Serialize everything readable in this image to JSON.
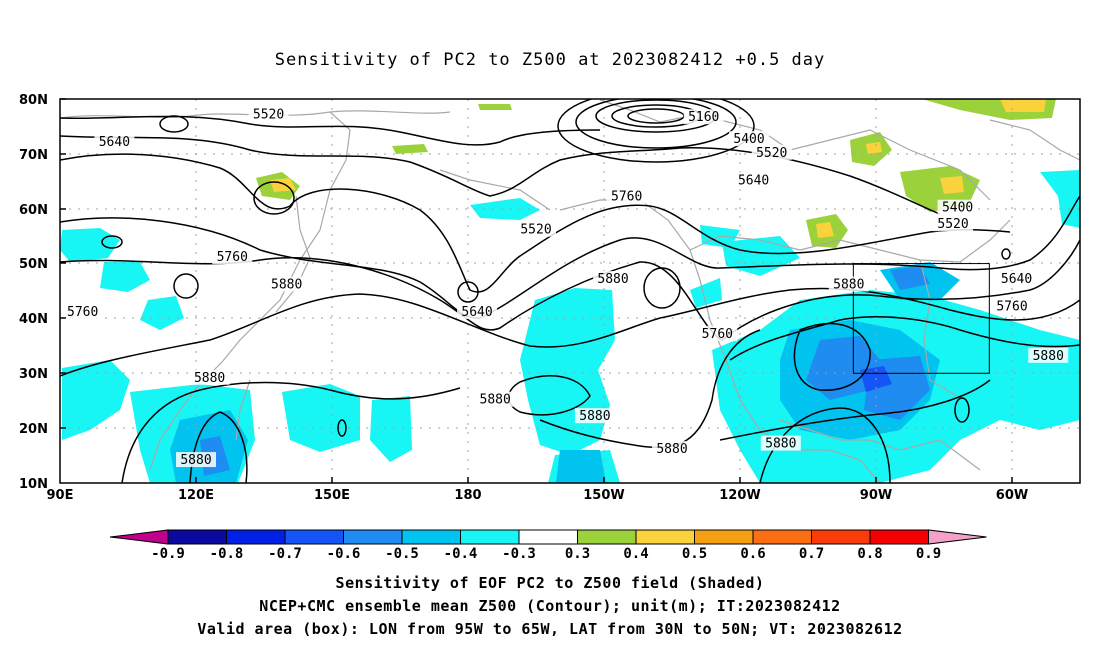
{
  "title": "Sensitivity of PC2 to Z500 at 2023082412 +0.5 day",
  "lat_labels": [
    "80N",
    "70N",
    "60N",
    "50N",
    "40N",
    "30N",
    "20N",
    "10N"
  ],
  "lon_labels": [
    "90E",
    "120E",
    "150E",
    "180",
    "150W",
    "120W",
    "90W",
    "60W"
  ],
  "colorbar": {
    "labels": [
      "-0.9",
      "-0.8",
      "-0.7",
      "-0.6",
      "-0.5",
      "-0.4",
      "-0.3",
      "0.3",
      "0.4",
      "0.5",
      "0.6",
      "0.7",
      "0.8",
      "0.9"
    ],
    "colors": [
      "#c0008c",
      "#0a0a9e",
      "#0020e6",
      "#1655f5",
      "#1e8cf0",
      "#00c3f0",
      "#18f5f5",
      "#ffffff",
      "#9bd23c",
      "#fad23c",
      "#f5a014",
      "#fa6e14",
      "#fa3c0a",
      "#f50000",
      "#f5a0c8"
    ]
  },
  "contour_labels": [
    "5160",
    "5400",
    "5520",
    "5640",
    "5760",
    "5880"
  ],
  "map_labels": [
    {
      "text": "5520",
      "lon": 136,
      "lat": 77
    },
    {
      "text": "5640",
      "lon": 102,
      "lat": 72
    },
    {
      "text": "5160",
      "lon": -128,
      "lat": 76.5
    },
    {
      "text": "5400",
      "lon": -118,
      "lat": 72.5
    },
    {
      "text": "5520",
      "lon": -113,
      "lat": 70
    },
    {
      "text": "5640",
      "lon": -117,
      "lat": 65
    },
    {
      "text": "5760",
      "lon": -145,
      "lat": 62
    },
    {
      "text": "5520",
      "lon": -165,
      "lat": 56
    },
    {
      "text": "5400",
      "lon": -72,
      "lat": 60
    },
    {
      "text": "5520",
      "lon": -73,
      "lat": 57
    },
    {
      "text": "5640",
      "lon": -59,
      "lat": 47
    },
    {
      "text": "5760",
      "lon": -60,
      "lat": 42
    },
    {
      "text": "5760",
      "lon": 128,
      "lat": 51
    },
    {
      "text": "5760",
      "lon": 95,
      "lat": 41
    },
    {
      "text": "5880",
      "lon": 140,
      "lat": 46
    },
    {
      "text": "5640",
      "lon": -178,
      "lat": 41
    },
    {
      "text": "5880",
      "lon": -148,
      "lat": 47
    },
    {
      "text": "5760",
      "lon": -125,
      "lat": 37
    },
    {
      "text": "5880",
      "lon": -96,
      "lat": 46
    },
    {
      "text": "5880",
      "lon": -52,
      "lat": 33
    },
    {
      "text": "5880",
      "lon": 123,
      "lat": 29
    },
    {
      "text": "5880",
      "lon": -174,
      "lat": 25
    },
    {
      "text": "5880",
      "lon": -152,
      "lat": 22
    },
    {
      "text": "5880",
      "lon": -135,
      "lat": 16
    },
    {
      "text": "5880",
      "lon": -111,
      "lat": 17
    },
    {
      "text": "5880",
      "lon": 120,
      "lat": 14
    }
  ],
  "valid_box": {
    "lon_min": -95,
    "lon_max": -65,
    "lat_min": 30,
    "lat_max": 50
  },
  "captions": {
    "line1": "Sensitivity of EOF PC2 to Z500 field (Shaded)",
    "line2": "NCEP+CMC ensemble mean Z500 (Contour); unit(m); IT:2023082412",
    "line3": "Valid area (box): LON from 95W to 65W, LAT from 30N to 50N; VT: 2023082612"
  }
}
